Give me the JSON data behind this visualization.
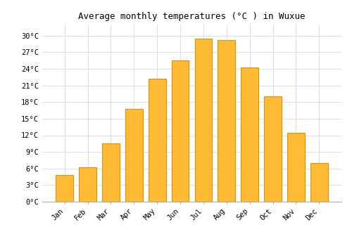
{
  "months": [
    "Jan",
    "Feb",
    "Mar",
    "Apr",
    "May",
    "Jun",
    "Jul",
    "Aug",
    "Sep",
    "Oct",
    "Nov",
    "Dec"
  ],
  "temperatures": [
    4.8,
    6.2,
    10.5,
    16.8,
    22.2,
    25.5,
    29.5,
    29.2,
    24.2,
    19.0,
    12.5,
    7.0
  ],
  "bar_color": "#FFBB33",
  "bar_edge_color": "#E09000",
  "title": "Average monthly temperatures (°C ) in Wuxue",
  "title_fontsize": 9,
  "ylim": [
    0,
    32
  ],
  "yticks": [
    0,
    3,
    6,
    9,
    12,
    15,
    18,
    21,
    24,
    27,
    30
  ],
  "background_color": "#ffffff",
  "grid_color": "#d8d8d8",
  "tick_label_fontsize": 7.5,
  "font_family": "monospace"
}
